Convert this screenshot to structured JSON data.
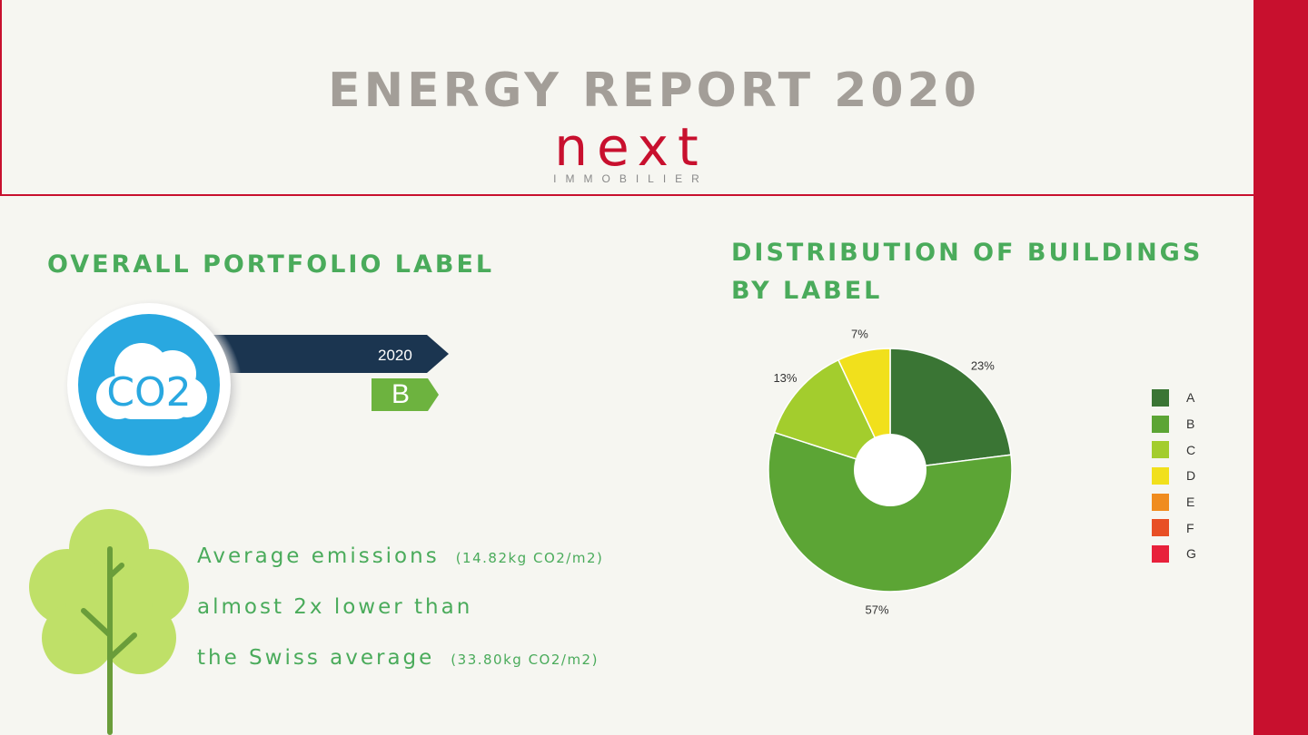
{
  "header": {
    "title": "ENERGY REPORT 2020",
    "logo_word": "next",
    "logo_sub": "IMMOBILIER"
  },
  "portfolio": {
    "title": "OVERALL PORTFOLIO LABEL",
    "badge_text": "CO2",
    "year": "2020",
    "label": "B"
  },
  "emissions": {
    "line1": "Average emissions",
    "line1_value": "(14.82kg CO2/m2)",
    "line2": "almost 2x lower than",
    "line3": "the Swiss average",
    "line3_value": "(33.80kg CO2/m2)"
  },
  "distribution": {
    "title_line1": "DISTRIBUTION OF BUILDINGS",
    "title_line2": "BY LABEL"
  },
  "colors": {
    "accent_red": "#c8102e",
    "section_green": "#4aab5b",
    "title_grey": "#a39e98",
    "arrow_navy": "#1b3550",
    "label_green": "#6db33f",
    "co2_blue": "#29a8e0"
  },
  "icons": [
    "co2-cloud-icon",
    "tree-icon"
  ],
  "chart_data": {
    "type": "pie",
    "donut": true,
    "title": "",
    "slices": [
      {
        "label": "A",
        "value": 23,
        "display": "23%",
        "color": "#3a7534"
      },
      {
        "label": "B",
        "value": 57,
        "display": "57%",
        "color": "#5ca535"
      },
      {
        "label": "C",
        "value": 13,
        "display": "13%",
        "color": "#a3cd2d"
      },
      {
        "label": "D",
        "value": 7,
        "display": "7%",
        "color": "#f1e01c"
      }
    ],
    "legend": [
      {
        "label": "A",
        "color": "#3a7534"
      },
      {
        "label": "B",
        "color": "#5ca535"
      },
      {
        "label": "C",
        "color": "#a3cd2d"
      },
      {
        "label": "D",
        "color": "#f1e01c"
      },
      {
        "label": "E",
        "color": "#f08c1e"
      },
      {
        "label": "F",
        "color": "#e84f25"
      },
      {
        "label": "G",
        "color": "#e8213b"
      }
    ],
    "legend_position": "right"
  }
}
